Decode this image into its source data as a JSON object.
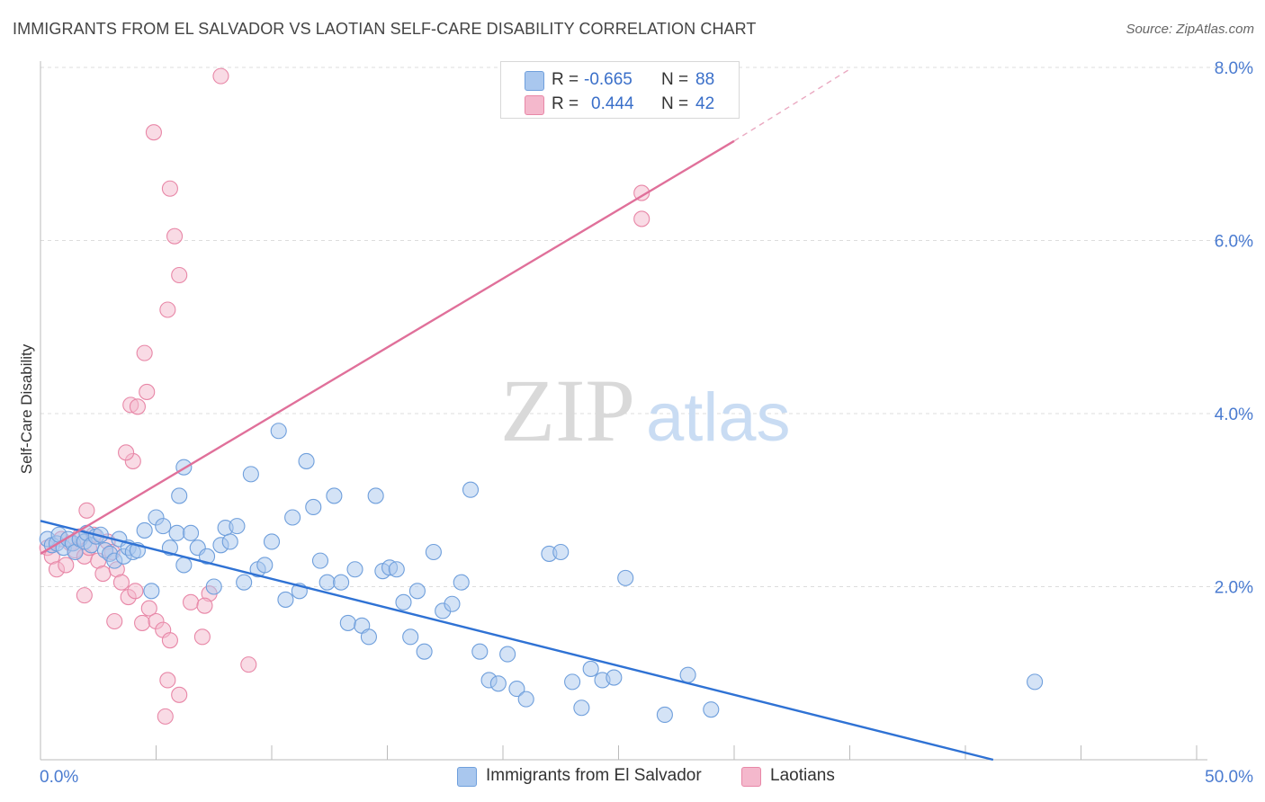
{
  "header": {
    "title": "IMMIGRANTS FROM EL SALVADOR VS LAOTIAN SELF-CARE DISABILITY CORRELATION CHART",
    "source": "Source: ZipAtlas.com"
  },
  "watermark": {
    "zip": "ZIP",
    "atlas": "atlas"
  },
  "legend": {
    "rows": [
      {
        "r_label": "R =",
        "r_value": "-0.665",
        "n_label": "N =",
        "n_value": "88",
        "color": "#a9c7ee"
      },
      {
        "r_label": "R =",
        "r_value": "0.444",
        "n_label": "N =",
        "n_value": "42",
        "color": "#f4b8cc"
      }
    ]
  },
  "bottom_legend": {
    "series_a": "Immigrants from El Salvador",
    "series_b": "Laotians"
  },
  "chart_data": {
    "type": "scatter",
    "ylabel": "Self-Care Disability",
    "xlim": [
      0,
      50
    ],
    "ylim": [
      0,
      8
    ],
    "x_tick_labels": {
      "min": "0.0%",
      "max": "50.0%"
    },
    "y_ticks": [
      {
        "value": 2,
        "label": "2.0%"
      },
      {
        "value": 4,
        "label": "4.0%"
      },
      {
        "value": 6,
        "label": "6.0%"
      },
      {
        "value": 8,
        "label": "8.0%"
      }
    ],
    "grid": true,
    "colors": {
      "series_a_fill": "#a9c7ee",
      "series_a_stroke": "#6f9fdc",
      "series_a_line": "#2f72d4",
      "series_b_fill": "#f4b8cc",
      "series_b_stroke": "#e887a7",
      "series_b_line": "#e0709a"
    },
    "series": [
      {
        "name": "Immigrants from El Salvador",
        "trend": {
          "x0": 0,
          "y0": 2.76,
          "x1": 41.2,
          "y1": 0
        },
        "points": [
          [
            0.3,
            2.55
          ],
          [
            0.5,
            2.48
          ],
          [
            0.7,
            2.5
          ],
          [
            0.8,
            2.6
          ],
          [
            1.0,
            2.45
          ],
          [
            1.2,
            2.55
          ],
          [
            1.4,
            2.5
          ],
          [
            1.5,
            2.4
          ],
          [
            1.7,
            2.55
          ],
          [
            1.9,
            2.52
          ],
          [
            2.0,
            2.62
          ],
          [
            2.2,
            2.48
          ],
          [
            2.4,
            2.58
          ],
          [
            2.6,
            2.6
          ],
          [
            2.8,
            2.42
          ],
          [
            3.0,
            2.38
          ],
          [
            3.2,
            2.3
          ],
          [
            3.4,
            2.55
          ],
          [
            3.6,
            2.35
          ],
          [
            3.8,
            2.45
          ],
          [
            4.0,
            2.4
          ],
          [
            4.2,
            2.42
          ],
          [
            4.5,
            2.65
          ],
          [
            4.8,
            1.95
          ],
          [
            5.0,
            2.8
          ],
          [
            5.3,
            2.7
          ],
          [
            5.6,
            2.45
          ],
          [
            5.9,
            2.62
          ],
          [
            6.2,
            2.25
          ],
          [
            6.5,
            2.62
          ],
          [
            6.8,
            2.45
          ],
          [
            6.0,
            3.05
          ],
          [
            6.2,
            3.38
          ],
          [
            7.2,
            2.35
          ],
          [
            7.5,
            2.0
          ],
          [
            7.8,
            2.48
          ],
          [
            8.0,
            2.68
          ],
          [
            8.2,
            2.52
          ],
          [
            8.5,
            2.7
          ],
          [
            8.8,
            2.05
          ],
          [
            9.1,
            3.3
          ],
          [
            9.4,
            2.2
          ],
          [
            9.7,
            2.25
          ],
          [
            10.0,
            2.52
          ],
          [
            10.3,
            3.8
          ],
          [
            10.6,
            1.85
          ],
          [
            10.9,
            2.8
          ],
          [
            11.2,
            1.95
          ],
          [
            11.5,
            3.45
          ],
          [
            11.8,
            2.92
          ],
          [
            12.1,
            2.3
          ],
          [
            12.4,
            2.05
          ],
          [
            12.7,
            3.05
          ],
          [
            13.0,
            2.05
          ],
          [
            13.3,
            1.58
          ],
          [
            13.6,
            2.2
          ],
          [
            13.9,
            1.55
          ],
          [
            14.2,
            1.42
          ],
          [
            14.5,
            3.05
          ],
          [
            14.8,
            2.18
          ],
          [
            15.1,
            2.22
          ],
          [
            15.4,
            2.2
          ],
          [
            15.7,
            1.82
          ],
          [
            16.0,
            1.42
          ],
          [
            16.3,
            1.95
          ],
          [
            16.6,
            1.25
          ],
          [
            17.0,
            2.4
          ],
          [
            17.4,
            1.72
          ],
          [
            17.8,
            1.8
          ],
          [
            18.2,
            2.05
          ],
          [
            18.6,
            3.12
          ],
          [
            19.0,
            1.25
          ],
          [
            19.4,
            0.92
          ],
          [
            19.8,
            0.88
          ],
          [
            20.2,
            1.22
          ],
          [
            20.6,
            0.82
          ],
          [
            21.0,
            0.7
          ],
          [
            22.0,
            2.38
          ],
          [
            22.5,
            2.4
          ],
          [
            23.0,
            0.9
          ],
          [
            23.4,
            0.6
          ],
          [
            23.8,
            1.05
          ],
          [
            24.3,
            0.92
          ],
          [
            24.8,
            0.95
          ],
          [
            25.3,
            2.1
          ],
          [
            27.0,
            0.52
          ],
          [
            28.0,
            0.98
          ],
          [
            29.0,
            0.58
          ],
          [
            43.0,
            0.9
          ]
        ]
      },
      {
        "name": "Laotians",
        "trend": {
          "x0": 0,
          "y0": 2.38,
          "x1": 30,
          "y1": 7.15,
          "x2": 35,
          "y2": 7.98
        },
        "points": [
          [
            0.3,
            2.45
          ],
          [
            0.5,
            2.35
          ],
          [
            0.7,
            2.2
          ],
          [
            0.9,
            2.55
          ],
          [
            1.1,
            2.25
          ],
          [
            1.3,
            2.5
          ],
          [
            1.5,
            2.42
          ],
          [
            1.7,
            2.58
          ],
          [
            1.9,
            2.35
          ],
          [
            2.1,
            2.45
          ],
          [
            2.3,
            2.6
          ],
          [
            2.5,
            2.3
          ],
          [
            2.7,
            2.15
          ],
          [
            2.9,
            2.52
          ],
          [
            3.1,
            2.4
          ],
          [
            3.3,
            2.2
          ],
          [
            3.5,
            2.05
          ],
          [
            3.8,
            1.88
          ],
          [
            4.1,
            1.95
          ],
          [
            4.4,
            1.58
          ],
          [
            4.7,
            1.75
          ],
          [
            5.0,
            1.6
          ],
          [
            5.3,
            1.5
          ],
          [
            5.6,
            1.38
          ],
          [
            2.0,
            2.88
          ],
          [
            3.2,
            1.6
          ],
          [
            1.9,
            1.9
          ],
          [
            4.0,
            3.45
          ],
          [
            3.7,
            3.55
          ],
          [
            3.9,
            4.1
          ],
          [
            4.2,
            4.08
          ],
          [
            4.6,
            4.25
          ],
          [
            4.5,
            4.7
          ],
          [
            5.5,
            5.2
          ],
          [
            6.0,
            5.6
          ],
          [
            5.8,
            6.05
          ],
          [
            5.6,
            6.6
          ],
          [
            4.9,
            7.25
          ],
          [
            7.8,
            7.9
          ],
          [
            6.0,
            0.75
          ],
          [
            5.5,
            0.92
          ],
          [
            5.4,
            0.5
          ],
          [
            7.3,
            1.92
          ],
          [
            7.0,
            1.42
          ],
          [
            6.5,
            1.82
          ],
          [
            7.1,
            1.78
          ],
          [
            9.0,
            1.1
          ],
          [
            26.0,
            6.25
          ],
          [
            26.0,
            6.55
          ]
        ]
      }
    ]
  }
}
